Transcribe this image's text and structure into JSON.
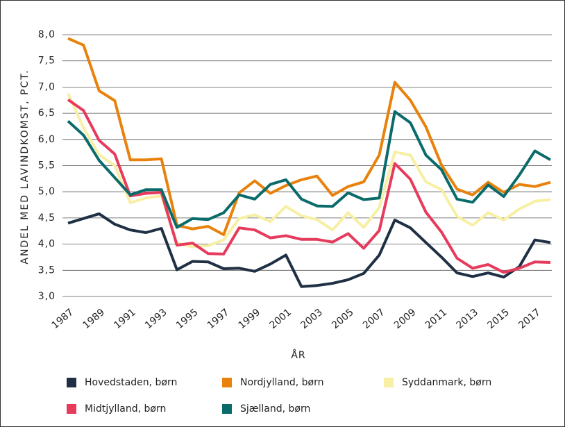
{
  "chart_data": {
    "type": "line",
    "y_label": "ANDEL MED LAVINDKOMST, PCT.",
    "x_label": "ÅR",
    "x": [
      1987,
      1988,
      1989,
      1990,
      1991,
      1992,
      1993,
      1994,
      1995,
      1996,
      1997,
      1998,
      1999,
      2000,
      2001,
      2002,
      2003,
      2004,
      2005,
      2006,
      2007,
      2008,
      2009,
      2010,
      2011,
      2012,
      2013,
      2014,
      2015,
      2016,
      2017,
      2018
    ],
    "xlim": [
      1987,
      2018
    ],
    "xticks": [
      1987,
      1989,
      1991,
      1993,
      1995,
      1997,
      1999,
      2001,
      2003,
      2005,
      2007,
      2009,
      2011,
      2013,
      2015,
      2017
    ],
    "ylim": [
      3,
      8
    ],
    "yticks": [
      {
        "value": 3,
        "label": "3,0"
      },
      {
        "value": 3.5,
        "label": "3,5"
      },
      {
        "value": 4,
        "label": "4,0"
      },
      {
        "value": 4.5,
        "label": "4,5"
      },
      {
        "value": 5,
        "label": "5,0"
      },
      {
        "value": 5.5,
        "label": "5,5"
      },
      {
        "value": 6,
        "label": "6,0"
      },
      {
        "value": 6.5,
        "label": "6,5"
      },
      {
        "value": 7,
        "label": "7,0"
      },
      {
        "value": 7.5,
        "label": "7,5"
      },
      {
        "value": 8,
        "label": "8,0"
      }
    ],
    "grid": true,
    "series": [
      {
        "name": "Hovedstaden, børn",
        "color": "#1f3044",
        "values": [
          4.4,
          4.49,
          4.58,
          4.38,
          4.27,
          4.22,
          4.3,
          3.51,
          3.67,
          3.66,
          3.53,
          3.54,
          3.48,
          3.62,
          3.79,
          3.19,
          3.21,
          3.25,
          3.32,
          3.44,
          3.79,
          4.46,
          4.31,
          4.03,
          3.75,
          3.45,
          3.38,
          3.45,
          3.37,
          3.57,
          4.08,
          4.03
        ]
      },
      {
        "name": "Nordjylland, børn",
        "color": "#e8820c",
        "values": [
          7.93,
          7.8,
          6.93,
          6.74,
          5.61,
          5.61,
          5.63,
          4.36,
          4.29,
          4.34,
          4.18,
          4.98,
          5.21,
          4.97,
          5.12,
          5.23,
          5.3,
          4.93,
          5.1,
          5.19,
          5.7,
          7.09,
          6.75,
          6.24,
          5.51,
          5.05,
          4.94,
          5.18,
          4.99,
          5.14,
          5.1,
          5.18
        ]
      },
      {
        "name": "Syddanmark, børn",
        "color": "#f7efa4",
        "values": [
          6.88,
          6.22,
          5.71,
          5.5,
          4.79,
          4.88,
          4.92,
          4.02,
          3.95,
          3.97,
          4.08,
          4.49,
          4.56,
          4.43,
          4.72,
          4.54,
          4.47,
          4.27,
          4.6,
          4.32,
          4.7,
          5.76,
          5.7,
          5.19,
          5.04,
          4.53,
          4.36,
          4.6,
          4.46,
          4.67,
          4.82,
          4.85
        ]
      },
      {
        "name": "Midtjylland, børn",
        "color": "#e63b5c",
        "values": [
          6.76,
          6.55,
          5.98,
          5.72,
          4.92,
          4.97,
          4.99,
          3.98,
          4.02,
          3.82,
          3.81,
          4.31,
          4.27,
          4.12,
          4.16,
          4.09,
          4.09,
          4.04,
          4.2,
          3.92,
          4.26,
          5.54,
          5.24,
          4.61,
          4.23,
          3.73,
          3.54,
          3.61,
          3.46,
          3.54,
          3.66,
          3.65
        ]
      },
      {
        "name": "Sjælland, børn",
        "color": "#0a6b6b",
        "values": [
          6.35,
          6.08,
          5.6,
          5.27,
          4.94,
          5.04,
          5.04,
          4.32,
          4.49,
          4.47,
          4.6,
          4.94,
          4.86,
          5.14,
          5.23,
          4.86,
          4.73,
          4.72,
          4.98,
          4.85,
          4.88,
          6.53,
          6.32,
          5.7,
          5.42,
          4.86,
          4.8,
          5.13,
          4.91,
          5.32,
          5.78,
          5.61
        ]
      }
    ]
  }
}
